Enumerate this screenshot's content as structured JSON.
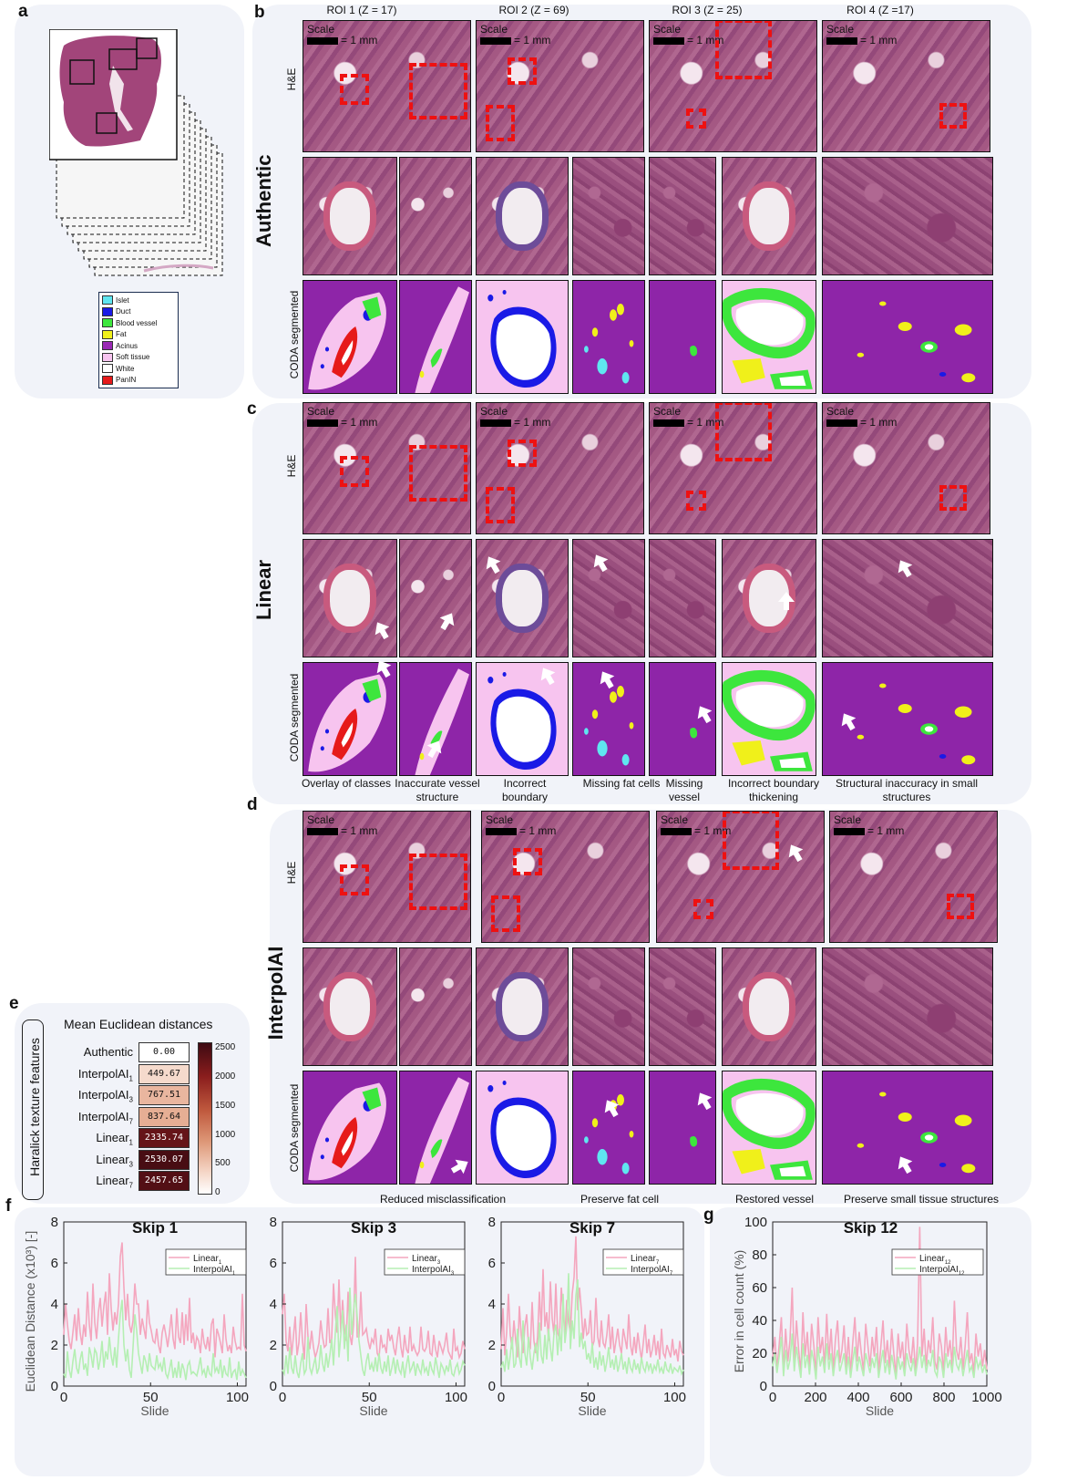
{
  "letters": {
    "a": "a",
    "b": "b",
    "c": "c",
    "d": "d",
    "e": "e",
    "f": "f",
    "g": "g"
  },
  "roi_headers": [
    "ROI 1 (Z = 17)",
    "ROI 2 (Z = 69)",
    "ROI 3 (Z = 25)",
    "ROI 4 (Z =17)"
  ],
  "row_labels": {
    "he": "H&E",
    "seg": "CODA segmented"
  },
  "group_labels": {
    "authentic": "Authentic",
    "linear": "Linear",
    "interpolai": "InterpolAI"
  },
  "scale": {
    "label": "Scale",
    "value": "= 1 mm"
  },
  "legend": [
    {
      "label": "Islet",
      "color": "#5fe6f0"
    },
    {
      "label": "Duct",
      "color": "#1a1ae6"
    },
    {
      "label": "Blood vessel",
      "color": "#3de63d"
    },
    {
      "label": "Fat",
      "color": "#f0f01a"
    },
    {
      "label": "Acinus",
      "color": "#9a28b4"
    },
    {
      "label": "Soft tissue",
      "color": "#f7c4ef"
    },
    {
      "label": "White",
      "color": "#ffffff"
    },
    {
      "label": "PanIN",
      "color": "#e61a1a"
    }
  ],
  "linear_captions": [
    "Overlay of classes",
    "Inaccurate vessel structure",
    "Incorrect boundary",
    "Missing fat cells",
    "Missing vessel",
    "Incorrect boundary thickening",
    "Structural inaccuracy in small structures"
  ],
  "interp_captions": [
    "Reduced misclassification",
    "Preserve fat cell",
    "Restored vessel",
    "Preserve small tissue structures"
  ],
  "heatmap": {
    "title": "Mean Euclidean distances",
    "side_label": "Haralick texture features",
    "rows": [
      {
        "label": "Authentic",
        "sub": "",
        "value": "0.00"
      },
      {
        "label": "InterpolAI",
        "sub": "1",
        "value": "449.67"
      },
      {
        "label": "InterpolAI",
        "sub": "3",
        "value": "767.51"
      },
      {
        "label": "InterpolAI",
        "sub": "7",
        "value": "837.64"
      },
      {
        "label": "Linear",
        "sub": "1",
        "value": "2335.74"
      },
      {
        "label": "Linear",
        "sub": "3",
        "value": "2530.07"
      },
      {
        "label": "Linear",
        "sub": "7",
        "value": "2457.65"
      }
    ],
    "colorbar_ticks": [
      "2500",
      "2000",
      "1500",
      "1000",
      "500",
      "0"
    ]
  },
  "chart_data": [
    {
      "type": "line",
      "title": "Skip 1",
      "xlabel": "Slide",
      "ylabel": "Euclidean Distance (x10³) [-]",
      "xlim": [
        0,
        105
      ],
      "ylim": [
        0,
        8
      ],
      "xticks": [
        "0",
        "50",
        "100"
      ],
      "yticks": [
        "0",
        "2",
        "4",
        "6",
        "8"
      ],
      "series": [
        {
          "name": "Linear",
          "sub": "1",
          "color": "#f4a6be",
          "values": [
            2.5,
            4,
            3,
            2.2,
            1.8,
            2.6,
            3.5,
            2.2,
            3.8,
            2.6,
            2,
            3,
            2.4,
            4.6,
            3,
            2.2,
            5,
            3.1,
            2.3,
            3.6,
            4.3,
            2.9,
            3.9,
            4.6,
            2.5,
            5.5,
            3.8,
            2.7,
            3.6,
            3,
            4,
            6.3,
            7,
            4.8,
            3.2,
            4.5,
            3,
            2.6,
            3.2,
            5,
            4,
            4,
            2.5,
            3.3,
            2.8,
            2.3,
            4.2,
            3.1,
            2.7,
            2.2,
            2.1,
            2.8,
            2,
            1.6,
            2.6,
            3,
            2.5,
            1.9,
            2.6,
            3.5,
            2.3,
            1.8,
            3.8,
            2.4,
            2.1,
            3.6,
            2,
            3.5,
            2.2,
            4.3,
            2.1,
            2.6,
            1.8,
            2.4,
            2.2,
            1.6,
            2.8,
            2.1,
            1.8,
            2.4,
            1.7,
            3,
            3.3,
            1.4,
            2.8,
            2.5,
            2.1,
            1.6,
            3.5,
            2.3,
            1.7,
            2,
            1.6,
            2.9,
            2.2,
            1.8,
            1.9,
            1.8,
            4.5,
            2,
            1.7
          ]
        },
        {
          "name": "InterpolAI",
          "sub": "1",
          "color": "#b5efb3",
          "values": [
            0.6,
            0.4,
            1.7,
            0.8,
            0.4,
            1.2,
            1.8,
            0.9,
            0.6,
            1.3,
            1.7,
            0.8,
            1.1,
            0.5,
            1.9,
            1.5,
            0.9,
            1.8,
            1.6,
            0.8,
            1.3,
            2.2,
            0.9,
            1.7,
            1.3,
            2.4,
            1.5,
            1,
            1.9,
            0.9,
            2.3,
            3.5,
            4.2,
            2,
            1.2,
            1.8,
            0.8,
            0.4,
            1.9,
            3.5,
            2.7,
            1.6,
            1.1,
            0.6,
            1.5,
            1.2,
            0.7,
            1.6,
            1,
            0.9,
            0.8,
            1.5,
            0.9,
            1.1,
            0.7,
            1.4,
            0.6,
            0.4,
            0.8,
            1.3,
            0.4,
            0.9,
            0.4,
            1.2,
            0.4,
            1.1,
            0.8,
            0.3,
            1,
            1.2,
            0.6,
            0.7,
            0.6,
            0.5,
            0.9,
            1.4,
            0.6,
            0.8,
            0.4,
            1,
            0.6,
            0.5,
            1.6,
            0.7,
            0.9,
            0.6,
            1.3,
            0.4,
            1,
            0.6,
            0.5,
            1.4,
            0.4,
            0.7,
            0.8,
            0.3,
            1.2,
            0.5,
            0.8,
            0.6,
            0.4
          ]
        }
      ]
    },
    {
      "type": "line",
      "title": "Skip 3",
      "xlabel": "Slide",
      "ylabel": "",
      "xlim": [
        0,
        105
      ],
      "ylim": [
        0,
        8
      ],
      "xticks": [
        "0",
        "50",
        "100"
      ],
      "yticks": [
        "0",
        "2",
        "4",
        "6",
        "8"
      ],
      "series": [
        {
          "name": "Linear",
          "sub": "3",
          "color": "#f4a6be",
          "values": [
            3.5,
            4.5,
            2.2,
            1.7,
            2.9,
            1.5,
            2.4,
            3.4,
            1.5,
            2.1,
            3.6,
            2.2,
            1.3,
            4,
            2.4,
            1.8,
            2.7,
            1.9,
            1.4,
            1.7,
            2.1,
            3.2,
            2.4,
            1.9,
            2,
            3.8,
            2.1,
            2.3,
            5,
            3.5,
            2.6,
            5.2,
            2.6,
            4.2,
            2.8,
            2.2,
            4.6,
            2.5,
            2,
            3,
            6.3,
            2.4,
            2.4,
            4.6,
            2.5,
            2.6,
            2.8,
            2.2,
            1.8,
            2.3,
            2.1,
            2.8,
            1.6,
            1.4,
            2.5,
            1.9,
            2,
            1.6,
            2.8,
            2.2,
            2.5,
            1.9,
            1.5,
            2.3,
            2.9,
            1.9,
            1.4,
            2.5,
            1.8,
            1.6,
            2.9,
            1.7,
            2,
            1.7,
            1.5,
            1.7,
            2.9,
            1.8,
            1.7,
            1.9,
            2.7,
            1.6,
            1.5,
            2.5,
            1.8,
            1.4,
            2.2,
            1.9,
            1.6,
            2,
            2.6,
            1.7,
            1.5,
            1.3,
            2.8,
            1.7,
            1.9,
            1.4,
            1.6,
            2.2,
            1.8
          ]
        },
        {
          "name": "InterpolAI",
          "sub": "3",
          "color": "#b5efb3",
          "values": [
            0.8,
            0.6,
            1.5,
            0.6,
            1.9,
            0.9,
            0.6,
            1.5,
            0.7,
            0.4,
            1.1,
            1.6,
            0.6,
            0.8,
            2.4,
            0.9,
            0.6,
            1,
            1.4,
            0.6,
            0.9,
            2,
            1.1,
            0.7,
            1.6,
            0.9,
            1.5,
            2.3,
            1,
            2.6,
            3.9,
            1.4,
            2.5,
            3.7,
            1.8,
            3,
            1.2,
            4.8,
            2.5,
            3.7,
            4.5,
            3.4,
            2.2,
            1.5,
            0.8,
            0.5,
            1.2,
            1.6,
            0.8,
            1.1,
            0.7,
            1.4,
            0.7,
            1.6,
            0.9,
            0.6,
            1.2,
            0.7,
            1.5,
            0.5,
            0.9,
            1.4,
            0.6,
            1.3,
            0.8,
            0.6,
            1.2,
            0.4,
            1,
            1.5,
            0.7,
            0.9,
            1.2,
            0.5,
            1.1,
            0.8,
            0.6,
            1.3,
            0.7,
            0.9,
            0.5,
            1.2,
            0.8,
            0.6,
            1.4,
            0.9,
            0.4,
            1.1,
            0.9,
            0.6,
            1,
            0.7,
            1.3,
            0.6,
            0.5,
            0.9,
            1.1,
            0.6,
            0.8,
            1.2,
            1
          ]
        }
      ]
    },
    {
      "type": "line",
      "title": "Skip 7",
      "xlabel": "Slide",
      "ylabel": "",
      "xlim": [
        0,
        105
      ],
      "ylim": [
        0,
        8
      ],
      "xticks": [
        "0",
        "50",
        "100"
      ],
      "yticks": [
        "0",
        "2",
        "4",
        "6",
        "8"
      ],
      "series": [
        {
          "name": "Linear",
          "sub": "7",
          "color": "#f4a6be",
          "values": [
            1.8,
            3.8,
            1.5,
            2.6,
            4.5,
            2.5,
            1.8,
            3.2,
            2.2,
            1.4,
            3.9,
            2.5,
            1.6,
            2.9,
            3.5,
            2,
            1.8,
            4.1,
            2.2,
            1.6,
            2.4,
            4.6,
            2.7,
            5.7,
            2.9,
            3.6,
            2.2,
            5.1,
            3.3,
            2.5,
            5,
            2.6,
            2.3,
            4.8,
            3.7,
            2.4,
            4.2,
            3.1,
            2.6,
            4.5,
            5.3,
            7.3,
            3.7,
            4.8,
            3.7,
            2.3,
            3.3,
            2.5,
            2.6,
            3.7,
            1.9,
            2.2,
            4.3,
            2.4,
            1.9,
            3.2,
            2.1,
            1.9,
            2.5,
            3.5,
            1.8,
            2.9,
            1.6,
            2.2,
            2.8,
            2,
            1.6,
            2.8,
            2.3,
            1.8,
            3.5,
            2,
            1.5,
            2.4,
            1.6,
            2.6,
            1.9,
            1.3,
            2.1,
            3,
            1.6,
            2.3,
            1.4,
            1.8,
            2.5,
            1.5,
            2.2,
            1.3,
            2.8,
            1.6,
            1.4,
            2,
            1.7,
            1.4,
            2.3,
            1.5,
            1.8,
            1.2,
            2.2,
            1.7,
            1.5
          ]
        },
        {
          "name": "InterpolAI",
          "sub": "7",
          "color": "#b5efb3",
          "values": [
            0.9,
            1.2,
            0.7,
            1.8,
            0.8,
            1.5,
            2.4,
            0.9,
            1.1,
            2.8,
            1.4,
            0.9,
            3.2,
            1.6,
            1,
            2.4,
            1.4,
            0.8,
            1.6,
            2.1,
            1.2,
            3.1,
            1.5,
            1.1,
            2.5,
            1.3,
            2.8,
            1.9,
            1.2,
            2.6,
            3,
            1.5,
            2.8,
            1.7,
            4.5,
            2.1,
            2.9,
            5.5,
            1.8,
            3.2,
            2.3,
            4.4,
            5.2,
            1.9,
            2.6,
            1.8,
            2.2,
            1.3,
            1.6,
            1.1,
            2.1,
            0.9,
            1.4,
            0.8,
            1.7,
            1,
            1.5,
            0.7,
            1.2,
            1.9,
            0.9,
            1.3,
            0.8,
            1.5,
            0.7,
            1.1,
            1.6,
            0.8,
            1.2,
            0.6,
            1.4,
            0.9,
            0.7,
            1.3,
            0.8,
            1.1,
            0.6,
            1.4,
            0.9,
            0.7,
            1.2,
            0.8,
            1.1,
            0.6,
            1,
            0.8,
            1.3,
            0.7,
            0.9,
            0.6,
            1.2,
            0.8,
            0.7,
            1.1,
            0.6,
            0.9,
            0.8,
            0.7,
            1,
            0.6,
            0.8
          ]
        }
      ]
    },
    {
      "type": "line",
      "title": "Skip 12",
      "xlabel": "Slide",
      "ylabel": "Error in cell count (%)",
      "xlim": [
        0,
        1000
      ],
      "ylim": [
        0,
        100
      ],
      "xticks": [
        "0",
        "200",
        "400",
        "600",
        "800",
        "1000"
      ],
      "yticks": [
        "0",
        "20",
        "40",
        "60",
        "80",
        "100"
      ],
      "series": [
        {
          "name": "Linear",
          "sub": "12",
          "color": "#f4a6be",
          "values": [
            18,
            30,
            10,
            25,
            42,
            8,
            35,
            15,
            28,
            60,
            12,
            40,
            22,
            8,
            45,
            18,
            33,
            10,
            38,
            25,
            6,
            42,
            20,
            30,
            12,
            44,
            16,
            35,
            9,
            28,
            40,
            14,
            22,
            37,
            11,
            30,
            8,
            26,
            42,
            15,
            33,
            20,
            9,
            38,
            25,
            12,
            30,
            18,
            36,
            8,
            24,
            40,
            14,
            28,
            11,
            35,
            20,
            6,
            32,
            17,
            27,
            10,
            38,
            22,
            14,
            30,
            9,
            26,
            97,
            18,
            35,
            12,
            28,
            20,
            42,
            15,
            10,
            32,
            24,
            8,
            36,
            18,
            28,
            12,
            52,
            22,
            16,
            30,
            10,
            25,
            45,
            14,
            20,
            8,
            32,
            18,
            26,
            12,
            22,
            10
          ]
        },
        {
          "name": "InterpolAI",
          "sub": "12",
          "color": "#b5efb3",
          "values": [
            12,
            20,
            8,
            18,
            30,
            6,
            22,
            10,
            16,
            32,
            9,
            24,
            14,
            5,
            26,
            11,
            19,
            7,
            22,
            15,
            4,
            24,
            12,
            18,
            8,
            26,
            10,
            20,
            6,
            16,
            22,
            9,
            14,
            20,
            7,
            18,
            5,
            15,
            24,
            9,
            18,
            12,
            6,
            20,
            14,
            8,
            17,
            11,
            20,
            5,
            14,
            22,
            8,
            16,
            7,
            19,
            12,
            4,
            18,
            10,
            15,
            6,
            20,
            13,
            9,
            17,
            6,
            15,
            24,
            11,
            19,
            8,
            16,
            12,
            22,
            9,
            6,
            18,
            14,
            5,
            20,
            11,
            16,
            8,
            24,
            13,
            10,
            17,
            6,
            14,
            22,
            9,
            12,
            5,
            18,
            11,
            15,
            8,
            13,
            7
          ]
        }
      ]
    }
  ]
}
